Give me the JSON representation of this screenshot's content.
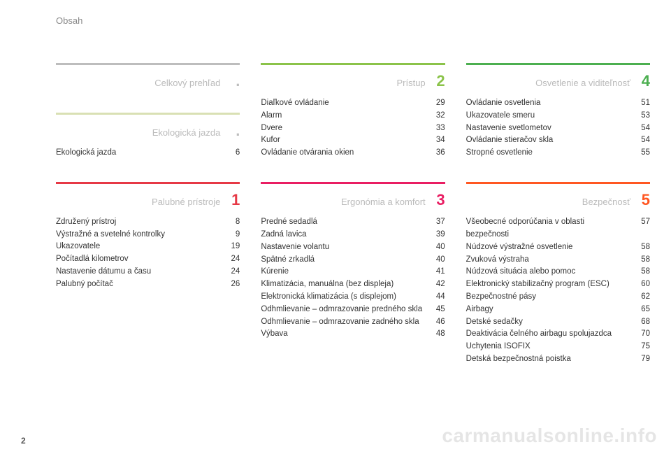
{
  "header": "Obsah",
  "pageNumber": "2",
  "watermark": "carmanualsonline.info",
  "columns": [
    {
      "sections": [
        {
          "title": "Celkový prehľad",
          "marker": ".",
          "ruleColor": "#bdbdbd",
          "numColor": "#bdbdbd",
          "items": []
        },
        {
          "title": "Ekologická jazda",
          "marker": ".",
          "ruleColor": "#d9e0b4",
          "numColor": "#bdbdbd",
          "items": [
            {
              "label": "Ekologická jazda",
              "page": "6"
            }
          ]
        },
        {
          "title": "Palubné prístroje",
          "marker": "1",
          "ruleColor": "#e63946",
          "numColor": "#e63946",
          "items": [
            {
              "label": "Združený prístroj",
              "page": "8"
            },
            {
              "label": "Výstražné a svetelné kontrolky",
              "page": "9"
            },
            {
              "label": "Ukazovatele",
              "page": "19"
            },
            {
              "label": "Počítadlá kilometrov",
              "page": "24"
            },
            {
              "label": "Nastavenie dátumu a času",
              "page": "24"
            },
            {
              "label": "Palubný počítač",
              "page": "26"
            }
          ]
        }
      ]
    },
    {
      "sections": [
        {
          "title": "Prístup",
          "marker": "2",
          "ruleColor": "#8bc34a",
          "numColor": "#8bc34a",
          "items": [
            {
              "label": "Diaľkové ovládanie",
              "page": "29"
            },
            {
              "label": "Alarm",
              "page": "32"
            },
            {
              "label": "Dvere",
              "page": "33"
            },
            {
              "label": "Kufor",
              "page": "34"
            },
            {
              "label": "Ovládanie otvárania okien",
              "page": "36"
            }
          ]
        },
        {
          "title": "Ergonómia a komfort",
          "marker": "3",
          "ruleColor": "#e91e63",
          "numColor": "#e91e63",
          "items": [
            {
              "label": "Predné sedadlá",
              "page": "37"
            },
            {
              "label": "Zadná lavica",
              "page": "39"
            },
            {
              "label": "Nastavenie volantu",
              "page": "40"
            },
            {
              "label": "Spätné zrkadlá",
              "page": "40"
            },
            {
              "label": "Kúrenie",
              "page": "41"
            },
            {
              "label": "Klimatizácia, manuálna (bez displeja)",
              "page": "42"
            },
            {
              "label": "Elektronická klimatizácia (s displejom)",
              "page": "44"
            },
            {
              "label": "Odhmlievanie – odmrazovanie predného skla",
              "page": "45"
            },
            {
              "label": "Odhmlievanie – odmrazovanie zadného skla",
              "page": "46"
            },
            {
              "label": "Výbava",
              "page": "48"
            }
          ]
        }
      ]
    },
    {
      "sections": [
        {
          "title": "Osvetlenie a viditeľnosť",
          "marker": "4",
          "ruleColor": "#4caf50",
          "numColor": "#4caf50",
          "items": [
            {
              "label": "Ovládanie osvetlenia",
              "page": "51"
            },
            {
              "label": "Ukazovatele smeru",
              "page": "53"
            },
            {
              "label": "Nastavenie svetlometov",
              "page": "54"
            },
            {
              "label": "Ovládanie stieračov skla",
              "page": "54"
            },
            {
              "label": "Stropné osvetlenie",
              "page": "55"
            }
          ]
        },
        {
          "title": "Bezpečnosť",
          "marker": "5",
          "ruleColor": "#ff5722",
          "numColor": "#ff5722",
          "items": [
            {
              "label": "Všeobecné odporúčania v oblasti bezpečnosti",
              "page": "57"
            },
            {
              "label": "Núdzové výstražné osvetlenie",
              "page": "58"
            },
            {
              "label": "Zvuková výstraha",
              "page": "58"
            },
            {
              "label": "Núdzová situácia alebo pomoc",
              "page": "58"
            },
            {
              "label": "Elektronický stabilizačný program (ESC)",
              "page": "60"
            },
            {
              "label": "Bezpečnostné pásy",
              "page": "62"
            },
            {
              "label": "Airbagy",
              "page": "65"
            },
            {
              "label": "Detské sedačky",
              "page": "68"
            },
            {
              "label": "Deaktivácia čelného airbagu spolujazdca",
              "page": "70"
            },
            {
              "label": "Uchytenia ISOFIX",
              "page": "75"
            },
            {
              "label": "Detská bezpečnostná poistka",
              "page": "79"
            }
          ]
        }
      ]
    }
  ]
}
